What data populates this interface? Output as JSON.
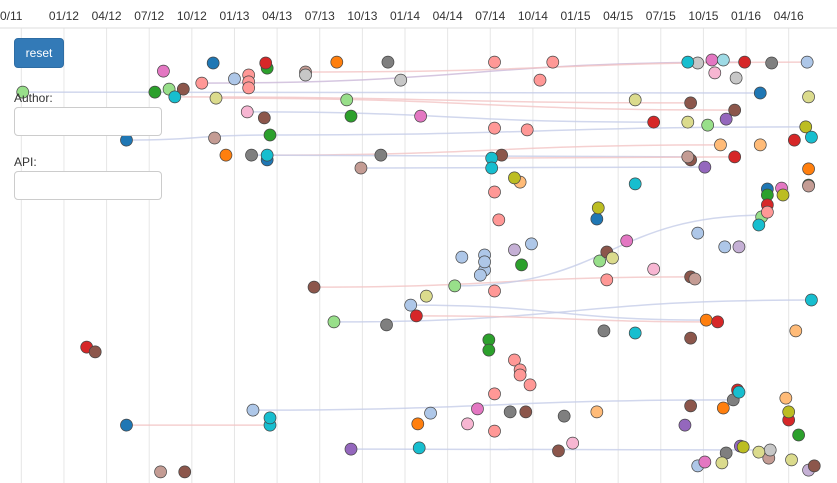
{
  "controls": {
    "reset": "reset",
    "author_label": "Author:",
    "api_label": "API:"
  },
  "chart_data": {
    "type": "scatter",
    "xlim": [
      7.5,
      66.4
    ],
    "ylim": [
      0,
      161
    ],
    "grid": true,
    "xticks": [
      {
        "value": 9,
        "label": "0/11"
      },
      {
        "value": 12,
        "label": "01/12"
      },
      {
        "value": 15,
        "label": "04/12"
      },
      {
        "value": 18,
        "label": "07/12"
      },
      {
        "value": 21,
        "label": "10/12"
      },
      {
        "value": 24,
        "label": "01/13"
      },
      {
        "value": 27,
        "label": "04/13"
      },
      {
        "value": 30,
        "label": "07/13"
      },
      {
        "value": 33,
        "label": "10/13"
      },
      {
        "value": 36,
        "label": "01/14"
      },
      {
        "value": 39,
        "label": "04/14"
      },
      {
        "value": 42,
        "label": "07/14"
      },
      {
        "value": 45,
        "label": "10/14"
      },
      {
        "value": 48,
        "label": "01/15"
      },
      {
        "value": 51,
        "label": "04/15"
      },
      {
        "value": 54,
        "label": "07/15"
      },
      {
        "value": 57,
        "label": "10/15"
      },
      {
        "value": 60,
        "label": "01/16"
      },
      {
        "value": 63,
        "label": "04/16"
      }
    ],
    "links": [
      {
        "color": "#c6cde8",
        "x": [
          9.1,
          61.0
        ],
        "y": [
          30.7,
          31.0
        ]
      },
      {
        "color": "#cbb8d8",
        "x": [
          21.7,
          59.9
        ],
        "y": [
          27.7,
          20.7
        ]
      },
      {
        "color": "#f2c4c4",
        "x": [
          29.0,
          64.3
        ],
        "y": [
          24,
          20.7
        ]
      },
      {
        "color": "#c6cde8",
        "x": [
          26.5,
          64.2
        ],
        "y": [
          45,
          42.3
        ]
      },
      {
        "color": "#c6cde8",
        "x": [
          16.4,
          26.5
        ],
        "y": [
          46.7,
          45
        ]
      },
      {
        "color": "#f2c4c4",
        "x": [
          26.3,
          58.2
        ],
        "y": [
          51.7,
          48.3
        ]
      },
      {
        "color": "#c6cde8",
        "x": [
          32.9,
          57.1
        ],
        "y": [
          56,
          55.7
        ]
      },
      {
        "color": "#f2c4c4",
        "x": [
          29.6,
          56.1
        ],
        "y": [
          95.7,
          92.3
        ]
      },
      {
        "color": "#c6cde8",
        "x": [
          31.0,
          64.6
        ],
        "y": [
          107.3,
          100
        ]
      },
      {
        "color": "#c6cde8",
        "x": [
          36.4,
          57.2
        ],
        "y": [
          101.7,
          106.7
        ]
      },
      {
        "color": "#f2c4c4",
        "x": [
          16.4,
          26.5
        ],
        "y": [
          141.7,
          141.7
        ]
      },
      {
        "color": "#c6cde8",
        "x": [
          25.3,
          59.1
        ],
        "y": [
          136.7,
          133.3
        ]
      },
      {
        "color": "#c6cde8",
        "x": [
          32.2,
          61.7
        ],
        "y": [
          149.7,
          150
        ]
      },
      {
        "color": "#c6cde8",
        "x": [
          39.5,
          61.4
        ],
        "y": [
          95.3,
          71.7
        ]
      },
      {
        "color": "#f2c4c4",
        "x": [
          19.8,
          56.1
        ],
        "y": [
          32.3,
          34.3
        ]
      },
      {
        "color": "#f2c4c4",
        "x": [
          22.7,
          59.2
        ],
        "y": [
          32.7,
          36.7
        ]
      },
      {
        "color": "#c6cde8",
        "x": [
          24.9,
          53.5
        ],
        "y": [
          37.3,
          40.7
        ]
      },
      {
        "color": "#c6cde8",
        "x": [
          25.2,
          55.9
        ],
        "y": [
          51.7,
          52.3
        ]
      },
      {
        "color": "#f2c4c4",
        "x": [
          42.1,
          59.2
        ],
        "y": [
          52.7,
          52.3
        ]
      },
      {
        "color": "#f2c4c4",
        "x": [
          36.8,
          58.0
        ],
        "y": [
          105.3,
          107.3
        ]
      }
    ],
    "series": [
      {
        "color": "#1f77b4",
        "x": [
          22.5,
          16.4,
          26.3,
          49.5,
          16.4,
          61.5,
          61.0
        ],
        "y": [
          21,
          46.7,
          53.3,
          73,
          141.7,
          63,
          31
        ]
      },
      {
        "color": "#aec7e8",
        "x": [
          24.0,
          40.0,
          41.6,
          44.9,
          56.6,
          58.5,
          37.8,
          25.3,
          36.4,
          56.6,
          64.3,
          41.6,
          41.6,
          41.3
        ],
        "y": [
          26.3,
          85.7,
          85,
          81.3,
          77.7,
          82.3,
          137.7,
          136.7,
          101.7,
          155.3,
          20.7,
          90,
          87.3,
          91.7
        ]
      },
      {
        "color": "#ff7f0e",
        "x": [
          31.2,
          23.4,
          58.4,
          57.2,
          36.9,
          64.4
        ],
        "y": [
          20.7,
          51.7,
          136,
          106.7,
          141.3,
          56.3
        ]
      },
      {
        "color": "#ffbb78",
        "x": [
          58.2,
          61.0,
          63.5,
          49.5,
          62.8,
          44.1
        ],
        "y": [
          48.3,
          48.3,
          110.3,
          137.3,
          132.7,
          60.7
        ]
      },
      {
        "color": "#2ca02c",
        "x": [
          18.4,
          26.3,
          32.2,
          44.2,
          41.9,
          41.9,
          63.7,
          26.5,
          64.4,
          61.5
        ],
        "y": [
          30.7,
          22.7,
          38.7,
          88.3,
          113.3,
          116.7,
          145,
          45,
          61.7,
          65
        ]
      },
      {
        "color": "#98df8a",
        "x": [
          9.1,
          19.4,
          31.9,
          39.5,
          31.0,
          57.3,
          49.7,
          61.1
        ],
        "y": [
          30.7,
          29.7,
          33.3,
          95.3,
          107.3,
          41.7,
          87,
          72.3
        ]
      },
      {
        "color": "#d62728",
        "x": [
          26.2,
          59.9,
          53.5,
          59.2,
          36.8,
          13.6,
          59.4,
          58.0,
          63.0,
          63.4,
          61.5
        ],
        "y": [
          21,
          20.7,
          40.7,
          52.3,
          105.3,
          115.7,
          130,
          107.3,
          140,
          46.7,
          68.3
        ]
      },
      {
        "color": "#ff9896",
        "x": [
          25.0,
          25.0,
          25.0,
          21.7,
          46.4,
          42.3,
          42.3,
          44.6,
          42.3,
          42.6,
          50.2,
          42.3,
          43.7,
          44.1,
          44.8,
          42.3,
          42.3,
          45.5,
          44.1,
          61.5
        ],
        "y": [
          25,
          27.3,
          29.3,
          27.7,
          20.7,
          20.7,
          42.7,
          43.3,
          64,
          73.3,
          93.3,
          97,
          120,
          123.3,
          128.3,
          131.3,
          143.7,
          26.7,
          125,
          70.7
        ]
      },
      {
        "color": "#9467bd",
        "x": [
          58.6,
          32.2,
          55.7,
          57.1,
          59.6
        ],
        "y": [
          39.7,
          149.7,
          141.7,
          55.7,
          148.7
        ]
      },
      {
        "color": "#c5b0d5",
        "x": [
          43.7,
          59.5,
          64.4
        ],
        "y": [
          83.3,
          82.3,
          156.7
        ]
      },
      {
        "color": "#8c564b",
        "x": [
          20.4,
          26.1,
          29.6,
          14.2,
          42.8,
          56.1,
          56.1,
          59.2,
          56.1,
          56.1,
          56.1,
          46.8,
          64.8,
          20.5,
          44.5,
          50.2
        ],
        "y": [
          29.7,
          39.3,
          95.7,
          117.3,
          51.7,
          34.3,
          53.3,
          36.7,
          92.3,
          112.7,
          135.3,
          150.3,
          155.3,
          157.3,
          137.3,
          84
        ]
      },
      {
        "color": "#c49c94",
        "x": [
          22.6,
          55.9,
          56.4,
          32.9,
          29.0,
          64.4,
          18.8,
          61.6
        ],
        "y": [
          46,
          52.3,
          93,
          56,
          24,
          62,
          157.3,
          152.7
        ]
      },
      {
        "color": "#e377c2",
        "x": [
          19.0,
          37.1,
          62.5,
          51.6,
          41.1,
          57.1,
          57.6
        ],
        "y": [
          23.7,
          38.7,
          62.7,
          80.3,
          136.3,
          154,
          20
        ]
      },
      {
        "color": "#f7b6d2",
        "x": [
          24.9,
          40.4,
          53.5,
          57.8,
          47.8
        ],
        "y": [
          37.3,
          141.3,
          89.7,
          24.3,
          147.7
        ]
      },
      {
        "color": "#7f7f7f",
        "x": [
          34.8,
          25.2,
          34.3,
          61.8,
          34.7,
          50.0,
          43.4,
          47.2,
          59.1,
          58.6
        ],
        "y": [
          20.7,
          51.7,
          51.7,
          21,
          108.3,
          110.3,
          137.3,
          138.7,
          133.3,
          151
        ]
      },
      {
        "color": "#c7c7c7",
        "x": [
          29.0,
          35.7,
          59.3,
          56.6,
          61.7
        ],
        "y": [
          25,
          26.7,
          26,
          21,
          150
        ]
      },
      {
        "color": "#bcbd22",
        "x": [
          62.6,
          43.7,
          64.2,
          49.6,
          63.0,
          59.8
        ],
        "y": [
          65,
          59.3,
          42.3,
          69.3,
          137.3,
          149
        ]
      },
      {
        "color": "#dbdb8d",
        "x": [
          22.7,
          37.5,
          52.2,
          55.9,
          50.6,
          58.3,
          60.9,
          63.2,
          64.4
        ],
        "y": [
          32.7,
          98.7,
          33.3,
          40.7,
          86,
          154.3,
          150.7,
          153.3,
          32.3
        ]
      },
      {
        "color": "#17becf",
        "x": [
          55.9,
          19.8,
          26.3,
          42.1,
          42.1,
          52.2,
          37.0,
          52.2,
          26.5,
          59.5,
          64.6,
          64.6,
          60.9,
          26.5
        ],
        "y": [
          20.7,
          32.3,
          51.7,
          52.7,
          56,
          61.3,
          149.3,
          111,
          141.7,
          130.7,
          100,
          45.7,
          75,
          139.3
        ]
      },
      {
        "color": "#9edae5",
        "x": [
          58.4
        ],
        "y": [
          20
        ]
      }
    ]
  }
}
